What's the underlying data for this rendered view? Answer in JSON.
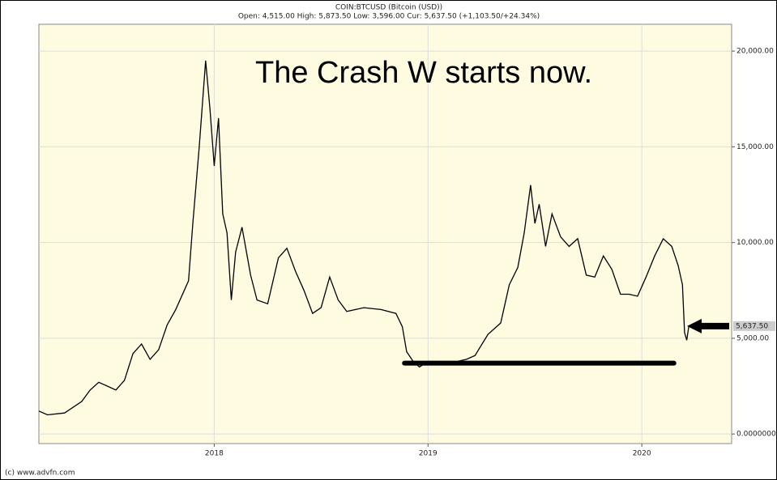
{
  "chart_data": {
    "type": "line",
    "title": "COIN:BTCUSD (Bitcoin (USD))",
    "subtitle": "Open: 4,515.00 High: 5,873.50 Low: 3,596.00 Cur: 5,637.50 (+1,103.50/+24.34%)",
    "annotation": "The Crash W starts now.",
    "footer": "(c) www.advfn.com",
    "xlim": [
      2017.18,
      2020.42
    ],
    "xticks": [
      2018,
      2019,
      2020
    ],
    "ylim": [
      -500,
      21400
    ],
    "yticks": [
      {
        "value": 0,
        "label": "0.0000000"
      },
      {
        "value": 5000,
        "label": "5,000.00"
      },
      {
        "value": 10000,
        "label": "10,000.00"
      },
      {
        "value": 15000,
        "label": "15,000.00"
      },
      {
        "value": 20000,
        "label": "20,000.00"
      }
    ],
    "grid": true,
    "current": {
      "value": 5637.5,
      "label": "5,637.50"
    },
    "support_line": {
      "y": 3700,
      "x": [
        2018.89,
        2020.15
      ],
      "color": "#000000"
    },
    "series": [
      {
        "name": "BTCUSD",
        "color": "#000000",
        "x": [
          2017.18,
          2017.22,
          2017.3,
          2017.38,
          2017.42,
          2017.46,
          2017.5,
          2017.54,
          2017.58,
          2017.62,
          2017.66,
          2017.7,
          2017.74,
          2017.78,
          2017.82,
          2017.86,
          2017.88,
          2017.9,
          2017.93,
          2017.96,
          2017.98,
          2018.0,
          2018.02,
          2018.04,
          2018.06,
          2018.08,
          2018.1,
          2018.13,
          2018.17,
          2018.2,
          2018.25,
          2018.3,
          2018.34,
          2018.38,
          2018.42,
          2018.46,
          2018.5,
          2018.54,
          2018.58,
          2018.62,
          2018.7,
          2018.78,
          2018.85,
          2018.88,
          2018.9,
          2018.93,
          2018.96,
          2019.0,
          2019.05,
          2019.1,
          2019.18,
          2019.22,
          2019.28,
          2019.34,
          2019.38,
          2019.42,
          2019.45,
          2019.48,
          2019.5,
          2019.52,
          2019.55,
          2019.58,
          2019.62,
          2019.66,
          2019.7,
          2019.74,
          2019.78,
          2019.82,
          2019.86,
          2019.9,
          2019.94,
          2019.98,
          2020.02,
          2020.06,
          2020.1,
          2020.14,
          2020.17,
          2020.19,
          2020.2,
          2020.21,
          2020.22
        ],
        "values": [
          1200,
          1000,
          1100,
          1700,
          2300,
          2700,
          2500,
          2300,
          2800,
          4200,
          4700,
          3900,
          4400,
          5700,
          6500,
          7500,
          8000,
          11000,
          15000,
          19500,
          17000,
          14000,
          16500,
          11500,
          10500,
          7000,
          9500,
          10800,
          8300,
          7000,
          6800,
          9200,
          9700,
          8500,
          7500,
          6300,
          6600,
          8200,
          7000,
          6400,
          6600,
          6500,
          6300,
          5600,
          4300,
          3800,
          3500,
          3800,
          3600,
          3700,
          3900,
          4100,
          5200,
          5800,
          7800,
          8700,
          10500,
          13000,
          11000,
          12000,
          9800,
          11500,
          10300,
          9800,
          10200,
          8300,
          8200,
          9300,
          8600,
          7300,
          7300,
          7200,
          8200,
          9300,
          10200,
          9800,
          8800,
          7800,
          5300,
          4900,
          5637.5
        ]
      }
    ]
  }
}
